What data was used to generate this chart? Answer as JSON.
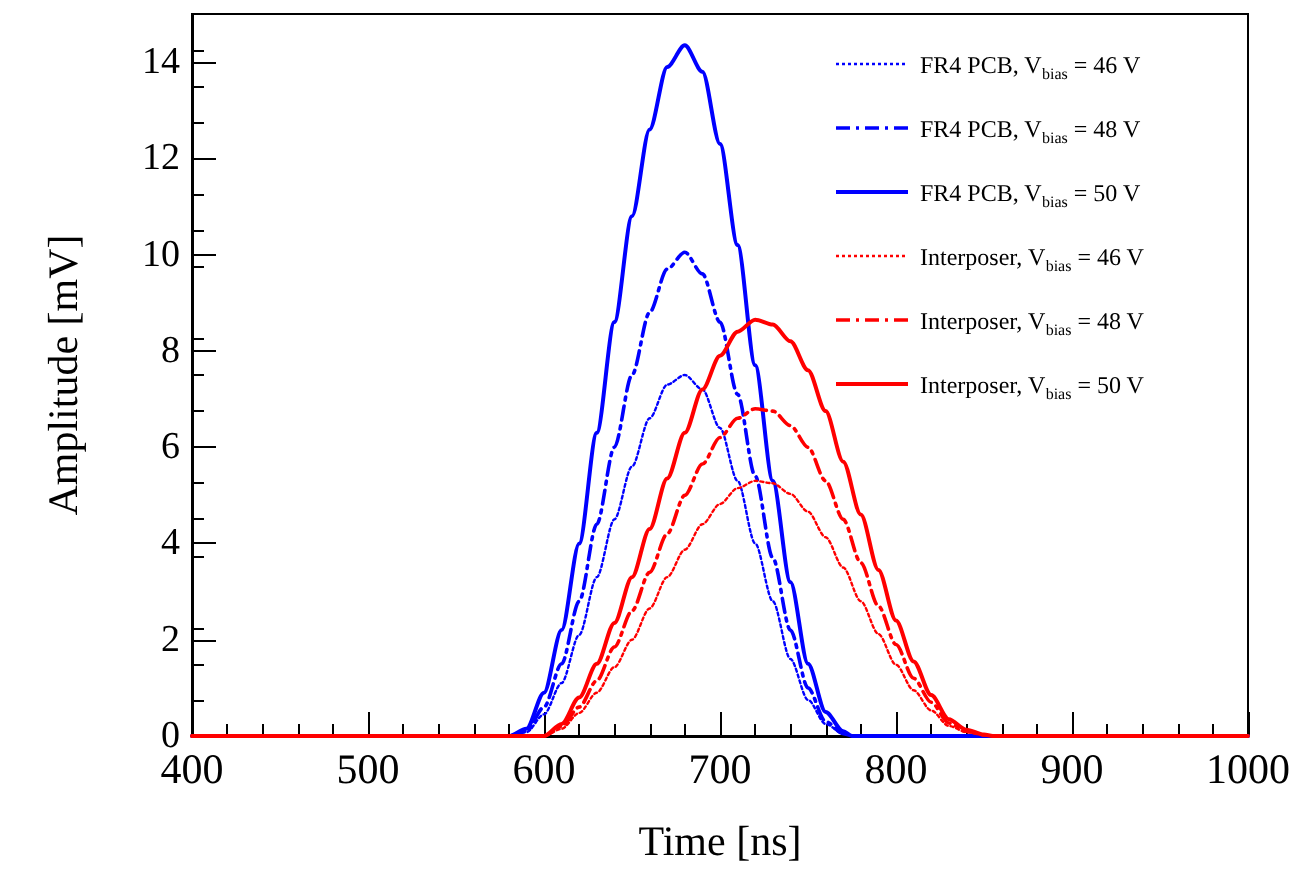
{
  "chart_data": {
    "type": "line",
    "xlabel": "Time [ns]",
    "ylabel": "Amplitude [mV]",
    "xlim": [
      400,
      1000
    ],
    "ylim": [
      0,
      15
    ],
    "xticks": [
      400,
      500,
      600,
      700,
      800,
      900,
      1000
    ],
    "yticks": [
      0,
      2,
      4,
      6,
      8,
      10,
      12,
      14
    ],
    "grid": false,
    "legend": "top right",
    "marker": "none",
    "series": [
      {
        "name": "FR4 PCB, V$_{bias}$ = 46 V",
        "color": "#0000ff",
        "line_style": "dotted",
        "x": [
          400,
          580,
          590,
          600,
          610,
          620,
          630,
          640,
          650,
          660,
          670,
          680,
          690,
          700,
          710,
          720,
          730,
          740,
          750,
          760,
          770,
          775,
          1000
        ],
        "values": [
          0,
          0,
          0.08,
          0.45,
          1.1,
          2.1,
          3.3,
          4.5,
          5.6,
          6.6,
          7.3,
          7.5,
          7.2,
          6.4,
          5.3,
          4.0,
          2.8,
          1.6,
          0.75,
          0.25,
          0.05,
          0,
          0
        ]
      },
      {
        "name": "FR4 PCB, V$_{bias}$ = 48 V",
        "color": "#0000ff",
        "line_style": "dashed",
        "x": [
          400,
          580,
          590,
          600,
          610,
          620,
          630,
          640,
          650,
          660,
          670,
          680,
          690,
          700,
          710,
          720,
          730,
          740,
          750,
          760,
          770,
          775,
          1000
        ],
        "values": [
          0,
          0,
          0.1,
          0.6,
          1.5,
          2.8,
          4.4,
          6.0,
          7.5,
          8.8,
          9.7,
          10.05,
          9.6,
          8.6,
          7.1,
          5.4,
          3.7,
          2.2,
          1.0,
          0.3,
          0.05,
          0,
          0
        ]
      },
      {
        "name": "FR4 PCB, V$_{bias}$ = 50 V",
        "color": "#0000ff",
        "line_style": "solid",
        "x": [
          400,
          580,
          590,
          600,
          610,
          620,
          630,
          640,
          650,
          660,
          670,
          680,
          690,
          700,
          710,
          720,
          730,
          740,
          750,
          760,
          770,
          775,
          1000
        ],
        "values": [
          0,
          0,
          0.15,
          0.9,
          2.2,
          4.0,
          6.3,
          8.6,
          10.8,
          12.6,
          13.9,
          14.35,
          13.8,
          12.3,
          10.2,
          7.7,
          5.3,
          3.2,
          1.5,
          0.5,
          0.1,
          0,
          0
        ]
      },
      {
        "name": "Interposer, V$_{bias}$ = 46 V",
        "color": "#ff0000",
        "line_style": "dotted",
        "x": [
          400,
          600,
          610,
          620,
          630,
          640,
          650,
          660,
          670,
          680,
          690,
          700,
          710,
          720,
          730,
          740,
          750,
          760,
          770,
          780,
          790,
          800,
          810,
          820,
          830,
          840,
          850,
          855,
          1000
        ],
        "values": [
          0,
          0,
          0.15,
          0.48,
          0.9,
          1.43,
          2.0,
          2.65,
          3.3,
          3.87,
          4.4,
          4.82,
          5.15,
          5.3,
          5.25,
          5.03,
          4.66,
          4.13,
          3.5,
          2.8,
          2.12,
          1.48,
          0.95,
          0.53,
          0.21,
          0.08,
          0.02,
          0,
          0
        ]
      },
      {
        "name": "Interposer, V$_{bias}$ = 48 V",
        "color": "#ff0000",
        "line_style": "dashed",
        "x": [
          400,
          600,
          610,
          620,
          630,
          640,
          650,
          660,
          670,
          680,
          690,
          700,
          710,
          720,
          730,
          740,
          750,
          760,
          770,
          780,
          790,
          800,
          810,
          820,
          830,
          840,
          850,
          855,
          1000
        ],
        "values": [
          0,
          0,
          0.2,
          0.6,
          1.15,
          1.85,
          2.6,
          3.4,
          4.2,
          5.0,
          5.65,
          6.2,
          6.6,
          6.8,
          6.75,
          6.45,
          6.0,
          5.3,
          4.5,
          3.6,
          2.7,
          1.9,
          1.2,
          0.7,
          0.27,
          0.1,
          0.02,
          0,
          0
        ]
      },
      {
        "name": "Interposer, V$_{bias}$ = 50 V",
        "color": "#ff0000",
        "line_style": "solid",
        "x": [
          400,
          600,
          610,
          620,
          630,
          640,
          650,
          660,
          670,
          680,
          690,
          700,
          710,
          720,
          730,
          740,
          750,
          760,
          770,
          780,
          790,
          800,
          810,
          820,
          830,
          840,
          850,
          855,
          1000
        ],
        "values": [
          0,
          0,
          0.25,
          0.8,
          1.5,
          2.35,
          3.3,
          4.3,
          5.35,
          6.3,
          7.2,
          7.9,
          8.4,
          8.65,
          8.55,
          8.2,
          7.6,
          6.75,
          5.7,
          4.6,
          3.45,
          2.4,
          1.55,
          0.85,
          0.35,
          0.13,
          0.03,
          0,
          0
        ]
      }
    ]
  }
}
